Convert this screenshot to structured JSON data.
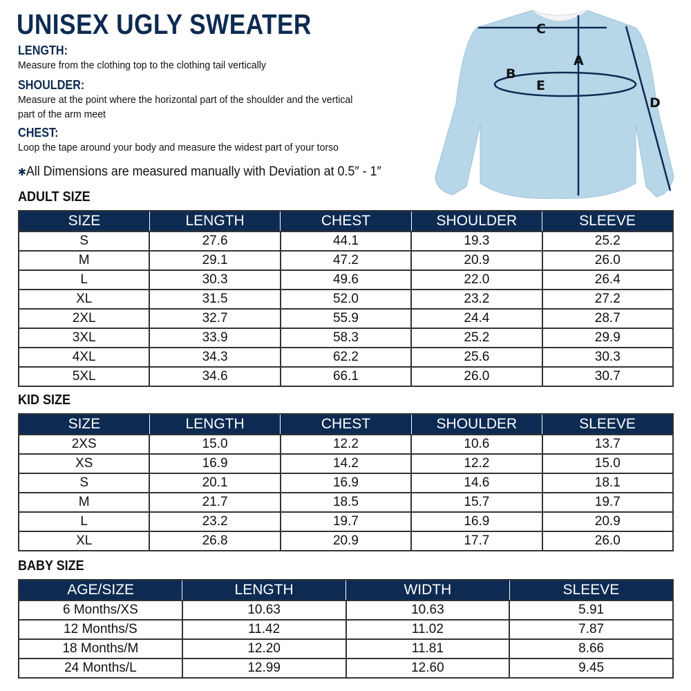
{
  "title": "UNISEX UGLY SWEATER",
  "guide": [
    {
      "heading": "LENGTH:",
      "text": [
        "Measure from the clothing top to the clothing tail vertically"
      ]
    },
    {
      "heading": "SHOULDER:",
      "text": [
        "Measure at the point where the horizontal part of the shoulder and the vertical",
        "part of the arm meet"
      ]
    },
    {
      "heading": "CHEST:",
      "text": [
        "Loop the tape around your body and measure the widest part of your torso"
      ]
    }
  ],
  "note": {
    "marker": "✱",
    "text": "All Dimensions are measured manually with Deviation at 0.5″ - 1″"
  },
  "diagram": {
    "labels": {
      "a": "A",
      "b": "B",
      "c": "C",
      "d": "D",
      "e": "E"
    },
    "garment_color": "#b7d6e8",
    "line_color": "#0d2b52"
  },
  "adult": {
    "heading": "ADULT SIZE",
    "columns": [
      "SIZE",
      "LENGTH",
      "CHEST",
      "SHOULDER",
      "SLEEVE"
    ],
    "rows": [
      [
        "S",
        "27.6",
        "44.1",
        "19.3",
        "25.2"
      ],
      [
        "M",
        "29.1",
        "47.2",
        "20.9",
        "26.0"
      ],
      [
        "L",
        "30.3",
        "49.6",
        "22.0",
        "26.4"
      ],
      [
        "XL",
        "31.5",
        "52.0",
        "23.2",
        "27.2"
      ],
      [
        "2XL",
        "32.7",
        "55.9",
        "24.4",
        "28.7"
      ],
      [
        "3XL",
        "33.9",
        "58.3",
        "25.2",
        "29.9"
      ],
      [
        "4XL",
        "34.3",
        "62.2",
        "25.6",
        "30.3"
      ],
      [
        "5XL",
        "34.6",
        "66.1",
        "26.0",
        "30.7"
      ]
    ]
  },
  "kid": {
    "heading": "KID SIZE",
    "columns": [
      "SIZE",
      "LENGTH",
      "CHEST",
      "SHOULDER",
      "SLEEVE"
    ],
    "rows": [
      [
        "2XS",
        "15.0",
        "12.2",
        "10.6",
        "13.7"
      ],
      [
        "XS",
        "16.9",
        "14.2",
        "12.2",
        "15.0"
      ],
      [
        "S",
        "20.1",
        "16.9",
        "14.6",
        "18.1"
      ],
      [
        "M",
        "21.7",
        "18.5",
        "15.7",
        "19.7"
      ],
      [
        "L",
        "23.2",
        "19.7",
        "16.9",
        "20.9"
      ],
      [
        "XL",
        "26.8",
        "20.9",
        "17.7",
        "26.0"
      ]
    ]
  },
  "baby": {
    "heading": "BABY SIZE",
    "columns": [
      "AGE/SIZE",
      "LENGTH",
      "WIDTH",
      "SLEEVE"
    ],
    "rows": [
      [
        "6 Months/XS",
        "10.63",
        "10.63",
        "5.91"
      ],
      [
        "12 Months/S",
        "11.42",
        "11.02",
        "7.87"
      ],
      [
        "18 Months/M",
        "12.20",
        "11.81",
        "8.66"
      ],
      [
        "24 Months/L",
        "12.99",
        "12.60",
        "9.45"
      ]
    ]
  },
  "colors": {
    "navy": "#0d2b52"
  }
}
